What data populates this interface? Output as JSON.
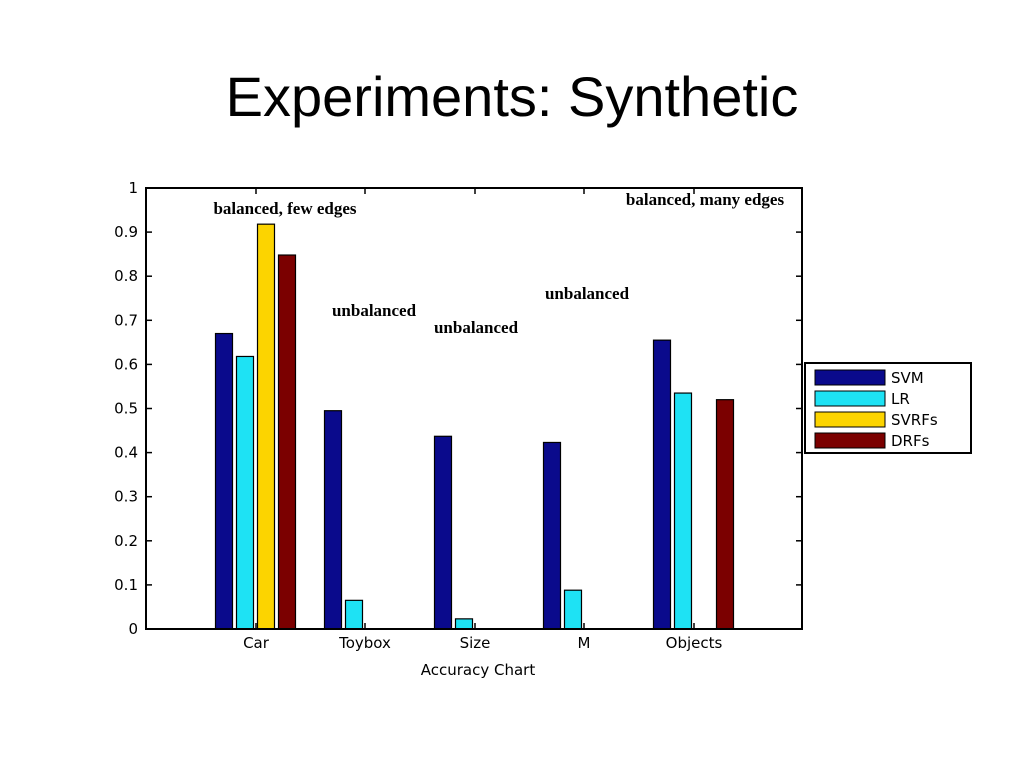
{
  "slide": {
    "title": "Experiments: Synthetic"
  },
  "chart_data": {
    "type": "bar",
    "xlabel": "Accuracy Chart",
    "ylabel": "",
    "ylim": [
      0,
      1
    ],
    "yticks": [
      "0",
      "0.1",
      "0.2",
      "0.3",
      "0.4",
      "0.5",
      "0.6",
      "0.7",
      "0.8",
      "0.9",
      "1"
    ],
    "categories": [
      "Car",
      "Toybox",
      "Size",
      "M",
      "Objects"
    ],
    "grid": false,
    "legend_position": "right",
    "series": [
      {
        "name": "SVM",
        "color": "#0a0a8c",
        "values": [
          0.67,
          0.495,
          0.437,
          0.423,
          0.655
        ]
      },
      {
        "name": "LR",
        "color": "#1ee2f4",
        "values": [
          0.618,
          0.065,
          0.023,
          0.088,
          0.535
        ]
      },
      {
        "name": "SVRFs",
        "color": "#fcd400",
        "values": [
          0.918,
          null,
          null,
          null,
          null
        ]
      },
      {
        "name": "DRFs",
        "color": "#7b0000",
        "values": [
          0.848,
          null,
          null,
          null,
          0.52
        ]
      }
    ],
    "annotations": [
      {
        "text": "balanced, few edges",
        "category": "Car"
      },
      {
        "text": "unbalanced",
        "category": "Toybox"
      },
      {
        "text": "unbalanced",
        "category": "Size"
      },
      {
        "text": "unbalanced",
        "category": "M"
      },
      {
        "text": "balanced, many edges",
        "category": "Objects"
      }
    ]
  }
}
